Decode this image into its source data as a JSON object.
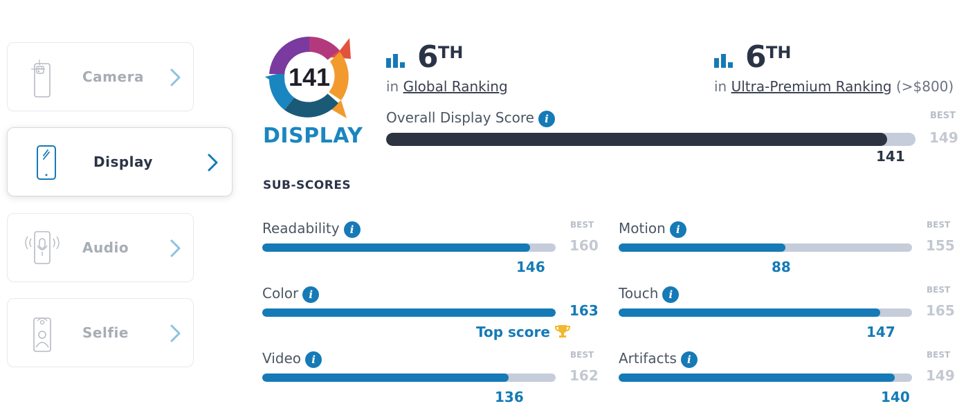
{
  "sidebar": {
    "tabs": [
      {
        "label": "Camera",
        "active": false
      },
      {
        "label": "Display",
        "active": true
      },
      {
        "label": "Audio",
        "active": false
      },
      {
        "label": "Selfie",
        "active": false
      }
    ]
  },
  "badge": {
    "score": "141",
    "label": "DISPLAY",
    "colors": {
      "ring_magenta": "#b23a7c",
      "ring_purple": "#7a3aa0",
      "ring_orange": "#f29a2e",
      "ring_red": "#e2533e",
      "ring_teal": "#1b5a77",
      "ring_blue": "#1a86bf"
    }
  },
  "rankings": [
    {
      "rank": "6",
      "suffix": "TH",
      "prefix": "in",
      "link": "Global Ranking",
      "extra": ""
    },
    {
      "rank": "6",
      "suffix": "TH",
      "prefix": "in",
      "link": "Ultra-Premium Ranking",
      "extra": "(>$800)"
    }
  ],
  "overall": {
    "title": "Overall Display Score",
    "score": "141",
    "best_label": "BEST",
    "best": "149",
    "fraction": 0.946
  },
  "subscores_heading": "SUB-SCORES",
  "subscores": [
    {
      "name": "Readability",
      "score": "146",
      "best_label": "BEST",
      "best": "160",
      "fraction": 0.9125,
      "top": false,
      "top_label": ""
    },
    {
      "name": "Motion",
      "score": "88",
      "best_label": "BEST",
      "best": "155",
      "fraction": 0.568,
      "top": false,
      "top_label": ""
    },
    {
      "name": "Color",
      "score": "163",
      "best_label": "",
      "best": "",
      "fraction": 1.0,
      "top": true,
      "top_label": "Top score"
    },
    {
      "name": "Touch",
      "score": "147",
      "best_label": "BEST",
      "best": "165",
      "fraction": 0.891,
      "top": false,
      "top_label": ""
    },
    {
      "name": "Video",
      "score": "136",
      "best_label": "BEST",
      "best": "162",
      "fraction": 0.84,
      "top": false,
      "top_label": ""
    },
    {
      "name": "Artifacts",
      "score": "140",
      "best_label": "BEST",
      "best": "149",
      "fraction": 0.94,
      "top": false,
      "top_label": ""
    }
  ],
  "colors": {
    "accent": "#157ab6",
    "dark": "#2b3447",
    "track": "#c5ccda",
    "muted": "#a7adb5"
  }
}
